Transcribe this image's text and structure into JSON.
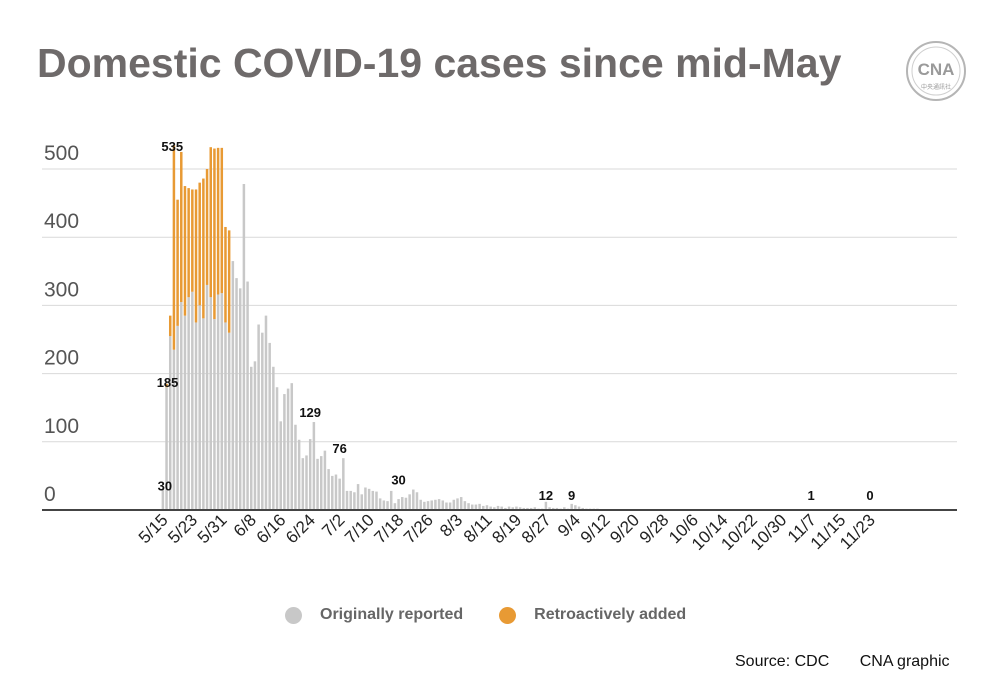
{
  "title": "Domestic COVID-19 cases since mid-May",
  "logo": {
    "mark": "CNA",
    "subtext": "中央通訊社",
    "icon": "cna-logo-icon"
  },
  "source": {
    "source_text": "Source: CDC",
    "credit_text": "CNA graphic"
  },
  "colors": {
    "original": "#c8c8c8",
    "retro": "#e89a34",
    "grid": "#d9d9d9",
    "axis": "#444444"
  },
  "legend": [
    {
      "label": "Originally reported",
      "color": "#c8c8c8"
    },
    {
      "label": "Retroactively added",
      "color": "#e89a34"
    }
  ],
  "chart_data": {
    "type": "bar",
    "stacked": true,
    "title": "Domestic COVID-19 cases since mid-May",
    "xlabel": "",
    "ylabel": "",
    "ylim": [
      0,
      535
    ],
    "yticks": [
      0,
      100,
      200,
      300,
      400,
      500
    ],
    "grid": true,
    "legend_position": "bottom",
    "x_tick_labels": [
      "5/15",
      "5/23",
      "5/31",
      "6/8",
      "6/16",
      "6/24",
      "7/2",
      "7/10",
      "7/18",
      "7/26",
      "8/3",
      "8/11",
      "8/19",
      "8/27",
      "9/4",
      "9/12",
      "9/20",
      "9/28",
      "10/6",
      "10/14",
      "10/22",
      "10/30",
      "11/7",
      "11/15",
      "11/23"
    ],
    "tick_every_days": 8,
    "start_date": "5/13",
    "annotations": [
      {
        "day": 2,
        "value": 30,
        "label": "30"
      },
      {
        "day": 3,
        "value": 185,
        "label": "185"
      },
      {
        "day": 4,
        "value": 535,
        "label": "535"
      },
      {
        "day": 42,
        "value": 129,
        "label": "129"
      },
      {
        "day": 50,
        "value": 76,
        "label": "76"
      },
      {
        "day": 66,
        "value": 30,
        "label": "30"
      },
      {
        "day": 106,
        "value": 12,
        "label": "12"
      },
      {
        "day": 113,
        "value": 9,
        "label": "9"
      },
      {
        "day": 178,
        "value": 1,
        "label": "1"
      },
      {
        "day": 194,
        "value": 0,
        "label": "0"
      }
    ],
    "series": [
      {
        "name": "Originally reported",
        "values": [
          0,
          0,
          30,
          180,
          255,
          235,
          270,
          305,
          285,
          312,
          320,
          275,
          300,
          281,
          330,
          312,
          280,
          316,
          318,
          275,
          260,
          365,
          340,
          325,
          478,
          335,
          210,
          218,
          272,
          260,
          285,
          245,
          210,
          180,
          130,
          170,
          178,
          186,
          125,
          103,
          76,
          80,
          104,
          129,
          75,
          79,
          87,
          60,
          50,
          52,
          46,
          76,
          28,
          28,
          26,
          38,
          23,
          33,
          31,
          28,
          27,
          17,
          14,
          13,
          28,
          10,
          16,
          19,
          18,
          23,
          30,
          26,
          15,
          12,
          13,
          14,
          15,
          16,
          14,
          11,
          11,
          15,
          17,
          19,
          13,
          10,
          8,
          8,
          9,
          6,
          7,
          5,
          4,
          6,
          5,
          3,
          5,
          4,
          5,
          4,
          3,
          3,
          3,
          4,
          2,
          2,
          12,
          4,
          3,
          3,
          2,
          4,
          2,
          9,
          7,
          5,
          3,
          2,
          2,
          2,
          2,
          1,
          1,
          1,
          1,
          1,
          1,
          1,
          1,
          1,
          1,
          1,
          1,
          1,
          1,
          1,
          1,
          1,
          1,
          1,
          1,
          1,
          1,
          1,
          1,
          1,
          1,
          1,
          1,
          1,
          1,
          1,
          1,
          1,
          1,
          1,
          1,
          1,
          1,
          1,
          1,
          1,
          1,
          1,
          1,
          1,
          1,
          1,
          1,
          1,
          1,
          1,
          1,
          1,
          1,
          1,
          1,
          1,
          1,
          1,
          1,
          1,
          1,
          1,
          1,
          1,
          1,
          1,
          1,
          1,
          1,
          1,
          1,
          1,
          1,
          1,
          1,
          1,
          1,
          0,
          0,
          0
        ]
      },
      {
        "name": "Retroactively added",
        "values": [
          0,
          0,
          0,
          5,
          30,
          300,
          185,
          220,
          190,
          160,
          150,
          195,
          180,
          205,
          170,
          220,
          250,
          215,
          213,
          140,
          150,
          0,
          0,
          0,
          0,
          0,
          0,
          0,
          0,
          0,
          0,
          0,
          0,
          0,
          0,
          0,
          0,
          0,
          0,
          0,
          0,
          0,
          0,
          0,
          0,
          0,
          0,
          0,
          0,
          0,
          0,
          0,
          0,
          0,
          0,
          0,
          0,
          0,
          0,
          0,
          0,
          0,
          0,
          0,
          0,
          0,
          0,
          0,
          0,
          0,
          0,
          0,
          0,
          0,
          0,
          0,
          0,
          0,
          0,
          0,
          0,
          0,
          0,
          0,
          0,
          0,
          0,
          0,
          0,
          0,
          0,
          0,
          0,
          0,
          0,
          0,
          0,
          0,
          0,
          0,
          0,
          0,
          0,
          0,
          0,
          0,
          0,
          0,
          0,
          0,
          0,
          0,
          0,
          0,
          0,
          0,
          0,
          0,
          0,
          0,
          0,
          0,
          0,
          0,
          0,
          0,
          0,
          0,
          0,
          0,
          0,
          0,
          0,
          0,
          0,
          0,
          0,
          0,
          0,
          0,
          0,
          0,
          0,
          0,
          0,
          0,
          0,
          0,
          0,
          0,
          0,
          0,
          0,
          0,
          0,
          0,
          0,
          0,
          0,
          0,
          0,
          0,
          0,
          0,
          0,
          0,
          0,
          0,
          0,
          0,
          0,
          0,
          0,
          0,
          0,
          0,
          0,
          0,
          0,
          0,
          0,
          0,
          0,
          0,
          0,
          0,
          0,
          0,
          0,
          0,
          0,
          0,
          0,
          0,
          0,
          0,
          0,
          0,
          0,
          0,
          0
        ]
      }
    ]
  }
}
